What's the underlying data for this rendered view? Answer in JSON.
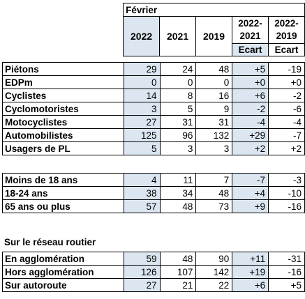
{
  "header": {
    "month": "Février",
    "years": [
      "2022",
      "2021",
      "2019"
    ],
    "diff_cols": [
      "2022-\n2021",
      "2022-\n2019"
    ],
    "diff_a_line1": "2022-",
    "diff_a_line2": "2021",
    "diff_b_line1": "2022-",
    "diff_b_line2": "2019",
    "ecart": "Ecart"
  },
  "users": [
    {
      "label": "Piétons",
      "y2022": "29",
      "y2021": "24",
      "y2019": "48",
      "d2021": "+5",
      "d2019": "-19"
    },
    {
      "label": "EDPm",
      "y2022": "0",
      "y2021": "0",
      "y2019": "0",
      "d2021": "+0",
      "d2019": "+0"
    },
    {
      "label": "Cyclistes",
      "y2022": "14",
      "y2021": "8",
      "y2019": "16",
      "d2021": "+6",
      "d2019": "-2"
    },
    {
      "label": "Cyclomotoristes",
      "y2022": "3",
      "y2021": "5",
      "y2019": "9",
      "d2021": "-2",
      "d2019": "-6"
    },
    {
      "label": "Motocyclistes",
      "y2022": "27",
      "y2021": "31",
      "y2019": "31",
      "d2021": "-4",
      "d2019": "-4"
    },
    {
      "label": "Automobilistes",
      "y2022": "125",
      "y2021": "96",
      "y2019": "132",
      "d2021": "+29",
      "d2019": "-7"
    },
    {
      "label": "Usagers de PL",
      "y2022": "5",
      "y2021": "3",
      "y2019": "3",
      "d2021": "+2",
      "d2019": "+2"
    }
  ],
  "ages": [
    {
      "label": "Moins de 18 ans",
      "y2022": "4",
      "y2021": "11",
      "y2019": "7",
      "d2021": "-7",
      "d2019": "-3"
    },
    {
      "label": "18-24 ans",
      "y2022": "38",
      "y2021": "34",
      "y2019": "48",
      "d2021": "+4",
      "d2019": "-10"
    },
    {
      "label": "65 ans ou plus",
      "y2022": "57",
      "y2021": "48",
      "y2019": "73",
      "d2021": "+9",
      "d2019": "-16"
    }
  ],
  "network_title": "Sur le réseau routier",
  "network": [
    {
      "label": "En agglomération",
      "y2022": "59",
      "y2021": "48",
      "y2019": "90",
      "d2021": "+11",
      "d2019": "-31"
    },
    {
      "label": "Hors agglomération",
      "y2022": "126",
      "y2021": "107",
      "y2019": "142",
      "d2021": "+19",
      "d2019": "-16"
    },
    {
      "label": "Sur autoroute",
      "y2022": "27",
      "y2021": "21",
      "y2019": "22",
      "d2021": "+6",
      "d2019": "+5"
    }
  ]
}
